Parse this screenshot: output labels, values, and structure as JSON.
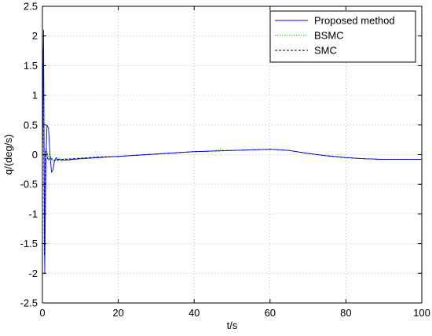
{
  "chart_data": {
    "type": "line",
    "title": "",
    "xlabel": "t/s",
    "ylabel": "q/(deg/s)",
    "xlim": [
      0,
      100
    ],
    "ylim": [
      -2.5,
      2.5
    ],
    "xticks": [
      0,
      20,
      40,
      60,
      80,
      100
    ],
    "yticks": [
      -2.5,
      -2,
      -1.5,
      -1,
      -0.5,
      0,
      0.5,
      1,
      1.5,
      2,
      2.5
    ],
    "xtick_labels": [
      "0",
      "20",
      "40",
      "60",
      "80",
      "100"
    ],
    "ytick_labels": [
      "-2.5",
      "-2",
      "-1.5",
      "-1",
      "-0.5",
      "0",
      "0.5",
      "1",
      "1.5",
      "2",
      "2.5"
    ],
    "grid": true,
    "legend_position": "top-right",
    "series": [
      {
        "name": "Proposed method",
        "color": "#0000ff",
        "dash": "solid",
        "x": [
          0,
          0.3,
          0.6,
          0.9,
          1.2,
          1.6,
          2.0,
          2.4,
          2.8,
          3.2,
          3.6,
          4.0,
          4.5,
          5,
          6,
          7,
          8,
          10,
          15,
          20,
          25,
          30,
          35,
          40,
          45,
          50,
          55,
          60,
          65,
          70,
          75,
          80,
          85,
          90,
          95,
          100
        ],
        "y": [
          0,
          2.1,
          -2.0,
          -0.2,
          0.5,
          0.45,
          0.0,
          -0.3,
          -0.25,
          -0.1,
          -0.05,
          -0.1,
          -0.08,
          -0.1,
          -0.09,
          -0.09,
          -0.08,
          -0.07,
          -0.05,
          -0.03,
          -0.01,
          0.01,
          0.03,
          0.05,
          0.06,
          0.07,
          0.08,
          0.09,
          0.07,
          0.02,
          -0.02,
          -0.05,
          -0.07,
          -0.08,
          -0.08,
          -0.08
        ]
      },
      {
        "name": "BSMC",
        "color": "#00c800",
        "dash": "dotted",
        "x": [
          0,
          0.25,
          0.5,
          0.8,
          1.1,
          1.5,
          2.0,
          2.5,
          3,
          4,
          5,
          6,
          8,
          10,
          15,
          20,
          25,
          30,
          35,
          40,
          44,
          46,
          47,
          48,
          50,
          55,
          60,
          65,
          70,
          75,
          80,
          85,
          90,
          95,
          100
        ],
        "y": [
          0,
          1.7,
          -1.6,
          0.1,
          0.1,
          -0.05,
          0.0,
          -0.1,
          -0.1,
          -0.05,
          -0.08,
          -0.07,
          -0.07,
          -0.06,
          -0.04,
          -0.03,
          -0.01,
          0.01,
          0.03,
          0.05,
          0.06,
          0.07,
          0.1,
          0.07,
          0.07,
          0.08,
          0.09,
          0.07,
          0.02,
          -0.02,
          -0.05,
          -0.07,
          -0.08,
          -0.08,
          -0.08
        ]
      },
      {
        "name": "SMC",
        "color": "#000000",
        "dash": "dashed",
        "x": [
          0,
          0.25,
          0.5,
          0.8,
          1.1,
          1.5,
          2.0,
          3,
          4,
          5,
          6,
          8,
          10,
          15,
          20,
          25,
          30,
          35,
          40,
          45,
          50,
          55,
          60,
          65,
          70,
          75,
          80,
          85,
          90,
          95,
          100
        ],
        "y": [
          0,
          1.8,
          -1.7,
          0.05,
          0.05,
          -0.1,
          -0.05,
          -0.1,
          -0.08,
          -0.08,
          -0.08,
          -0.07,
          -0.06,
          -0.04,
          -0.03,
          -0.01,
          0.01,
          0.03,
          0.05,
          0.06,
          0.07,
          0.08,
          0.09,
          0.07,
          0.02,
          -0.02,
          -0.05,
          -0.07,
          -0.08,
          -0.08,
          -0.08
        ]
      }
    ]
  }
}
